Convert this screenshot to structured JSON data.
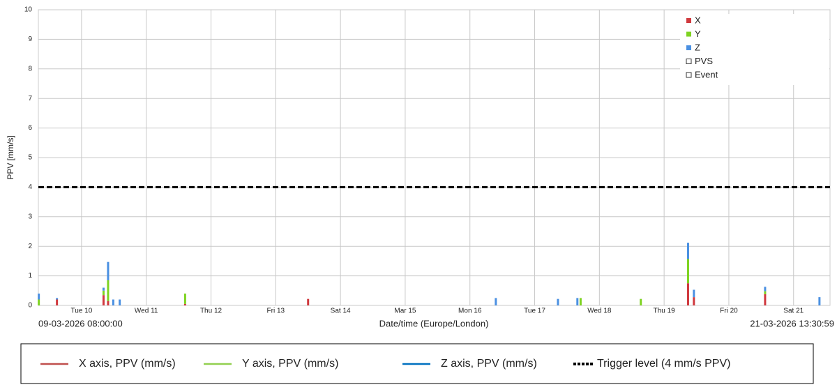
{
  "chart_data": {
    "type": "bar",
    "y_label": "PPV [mm/s]",
    "x_label": "Date/time (Europe/London)",
    "x_start_label": "09-03-2026 08:00:00",
    "x_end_label": "21-03-2026 13:30:59",
    "x": [
      9.34,
      9.62,
      10.34,
      10.41,
      10.49,
      10.59,
      11.6,
      13.5,
      16.4,
      17.36,
      17.66,
      17.71,
      18.64,
      19.37,
      19.46,
      20.56,
      21.4
    ],
    "series": [
      {
        "name": "X",
        "color": "#d0393e",
        "values": [
          null,
          0.2,
          0.35,
          0.15,
          null,
          null,
          0.05,
          0.22,
          null,
          null,
          null,
          null,
          null,
          0.75,
          0.28,
          0.38,
          null
        ]
      },
      {
        "name": "Y",
        "color": "#7ed321",
        "values": [
          0.2,
          null,
          0.15,
          0.7,
          null,
          null,
          0.35,
          null,
          null,
          null,
          null,
          0.25,
          0.22,
          0.82,
          null,
          0.1,
          null
        ]
      },
      {
        "name": "Z",
        "color": "#4a90e2",
        "values": [
          0.2,
          0.05,
          0.1,
          0.62,
          0.2,
          0.2,
          null,
          null,
          0.25,
          0.22,
          0.25,
          null,
          null,
          0.55,
          0.25,
          0.15,
          0.28
        ]
      }
    ],
    "legend_extra": [
      {
        "name": "PVS",
        "color": "#f08ab0"
      },
      {
        "name": "Event",
        "color": "#aaaaaa"
      }
    ],
    "legend": "upper right",
    "xlim": [
      9.333,
      21.563
    ],
    "xticks": [
      {
        "value": 10,
        "label": "Tue 10"
      },
      {
        "value": 11,
        "label": "Wed 11"
      },
      {
        "value": 12,
        "label": "Thu 12"
      },
      {
        "value": 13,
        "label": "Fri 13"
      },
      {
        "value": 14,
        "label": "Sat 14"
      },
      {
        "value": 15,
        "label": "Mar 15"
      },
      {
        "value": 16,
        "label": "Mon 16"
      },
      {
        "value": 17,
        "label": "Tue 17"
      },
      {
        "value": 18,
        "label": "Wed 18"
      },
      {
        "value": 19,
        "label": "Thu 19"
      },
      {
        "value": 20,
        "label": "Fri 20"
      },
      {
        "value": 21,
        "label": "Sat 21"
      }
    ],
    "ylim": [
      0,
      10
    ],
    "yticks": [
      0,
      1,
      2,
      3,
      4,
      5,
      6,
      7,
      8,
      9,
      10
    ],
    "grid": true,
    "trigger": {
      "value": 4,
      "color": "#000000"
    },
    "bottom_legend": [
      {
        "label": "X axis, PPV (mm/s)",
        "color": "#c0504d",
        "dash": false
      },
      {
        "label": "Y axis, PPV (mm/s)",
        "color": "#92d050",
        "dash": false
      },
      {
        "label": "Z axis, PPV (mm/s)",
        "color": "#0070c0",
        "dash": false
      },
      {
        "label": "Trigger level (4 mm/s PPV)",
        "color": "#000000",
        "dash": true
      }
    ]
  }
}
